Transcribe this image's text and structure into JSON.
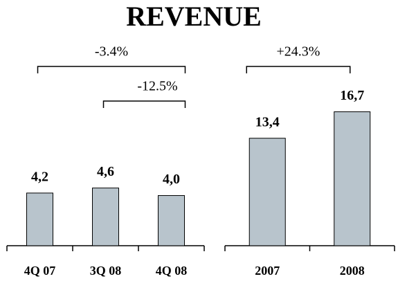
{
  "title": "REVENUE",
  "chart_data": [
    {
      "type": "bar",
      "categories": [
        "4Q 07",
        "3Q 08",
        "4Q 08"
      ],
      "values": [
        4.2,
        4.6,
        4.0
      ],
      "value_labels": [
        "4,2",
        "4,6",
        "4,0"
      ],
      "color": "#b8c4cc",
      "ylim": [
        0,
        14.9
      ],
      "annotations": [
        {
          "text": "-3.4%",
          "from": "4Q 07",
          "to": "4Q 08"
        },
        {
          "text": "-12.5%",
          "from": "3Q 08",
          "to": "4Q 08"
        }
      ]
    },
    {
      "type": "bar",
      "categories": [
        "2007",
        "2008"
      ],
      "values": [
        13.4,
        16.7
      ],
      "value_labels": [
        "13,4",
        "16,7"
      ],
      "color": "#b8c4cc",
      "ylim": [
        0,
        23.3
      ],
      "annotations": [
        {
          "text": "+24.3%",
          "from": "2007",
          "to": "2008"
        }
      ]
    }
  ]
}
